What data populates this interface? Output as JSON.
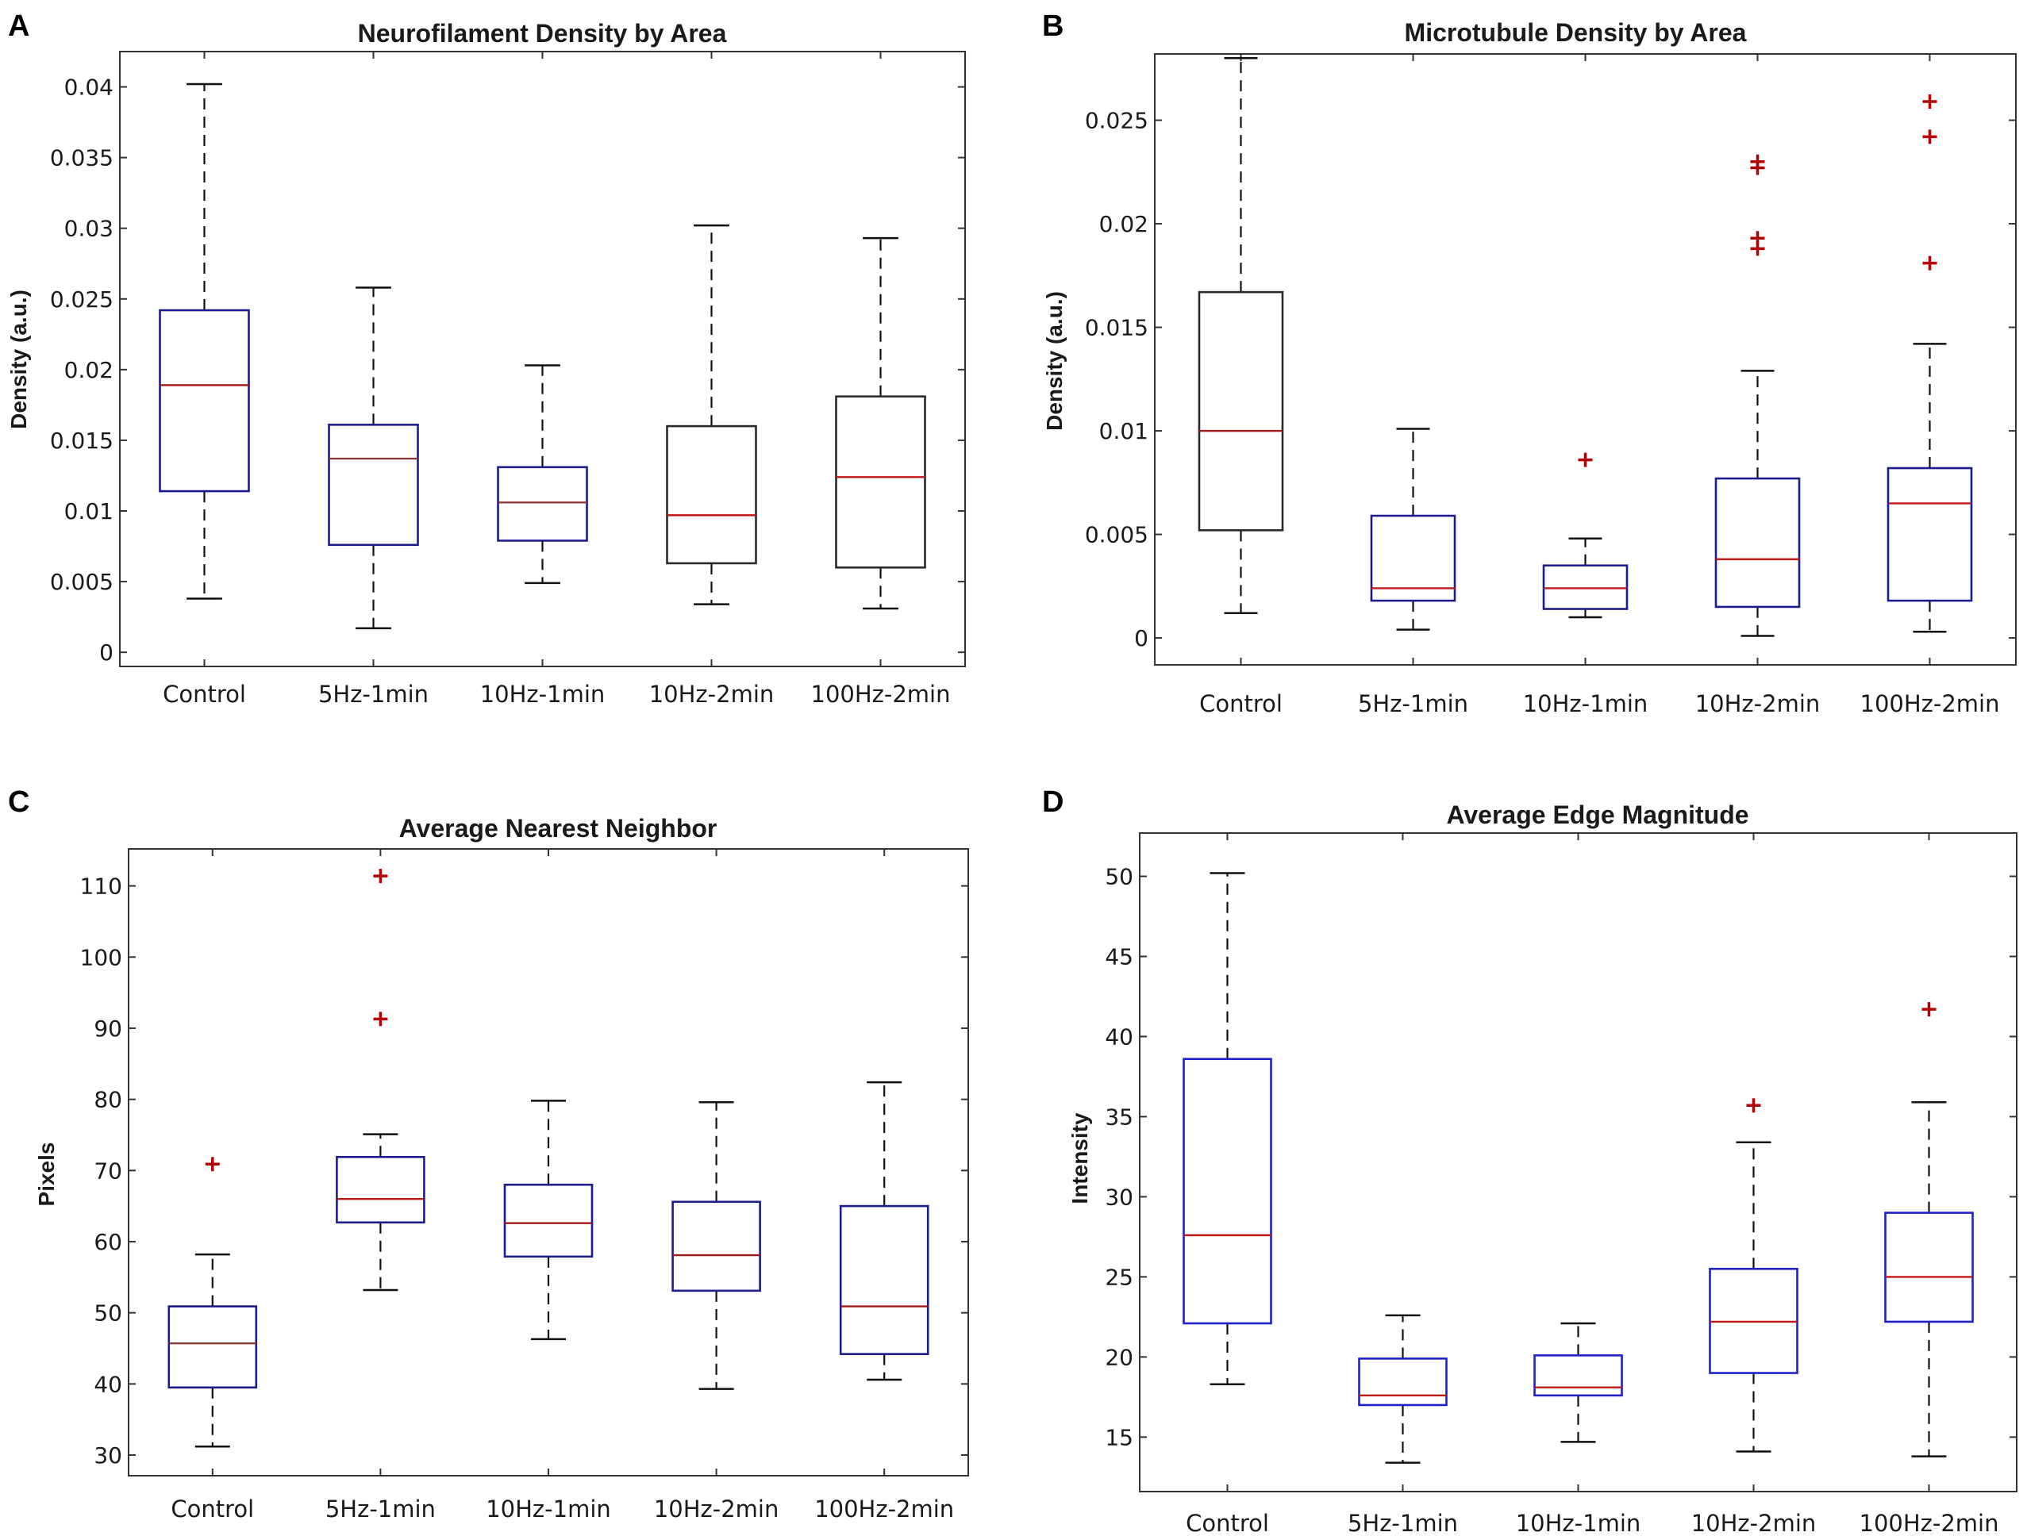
{
  "chart_data": [
    {
      "id": "A",
      "panel_label": "A",
      "type": "box",
      "title": "Neurofilament Density by Area",
      "xlabel": "",
      "ylabel": "Density (a.u.)",
      "ylim": [
        -0.001,
        0.0425
      ],
      "yticks": [
        0,
        0.005,
        0.01,
        0.015,
        0.02,
        0.025,
        0.03,
        0.035,
        0.04
      ],
      "ytick_labels": [
        "0",
        "0.005",
        "0.01",
        "0.015",
        "0.02",
        "0.025",
        "0.03",
        "0.035",
        "0.04"
      ],
      "categories": [
        "Control",
        "5Hz-1min",
        "10Hz-1min",
        "10Hz-2min",
        "100Hz-2min"
      ],
      "boxes": [
        {
          "whisker_low": 0.0038,
          "q1": 0.0114,
          "median": 0.0189,
          "q3": 0.0242,
          "whisker_high": 0.0402,
          "outliers": [],
          "box_color": "#1c1c8c",
          "median_color": "#a01818"
        },
        {
          "whisker_low": 0.0017,
          "q1": 0.0076,
          "median": 0.0137,
          "q3": 0.0161,
          "whisker_high": 0.0258,
          "outliers": [],
          "box_color": "#1c1c8c",
          "median_color": "#8a3a3a"
        },
        {
          "whisker_low": 0.0049,
          "q1": 0.0079,
          "median": 0.0106,
          "q3": 0.0131,
          "whisker_high": 0.0203,
          "outliers": [],
          "box_color": "#1c1c8c",
          "median_color": "#8a3a3a"
        },
        {
          "whisker_low": 0.0034,
          "q1": 0.0063,
          "median": 0.0097,
          "q3": 0.016,
          "whisker_high": 0.0302,
          "outliers": [],
          "box_color": "#2a2a2a",
          "median_color": "#c01818"
        },
        {
          "whisker_low": 0.0031,
          "q1": 0.006,
          "median": 0.0124,
          "q3": 0.0181,
          "whisker_high": 0.0293,
          "outliers": [],
          "box_color": "#2a2a2a",
          "median_color": "#c01818"
        }
      ]
    },
    {
      "id": "B",
      "panel_label": "B",
      "type": "box",
      "title": "Microtubule Density by Area",
      "xlabel": "",
      "ylabel": "Density (a.u.)",
      "ylim": [
        -0.0013,
        0.0282
      ],
      "yticks": [
        0,
        0.005,
        0.01,
        0.015,
        0.02,
        0.025
      ],
      "ytick_labels": [
        "0",
        "0.005",
        "0.01",
        "0.015",
        "0.02",
        "0.025"
      ],
      "categories": [
        "Control",
        "5Hz-1min",
        "10Hz-1min",
        "10Hz-2min",
        "100Hz-2min"
      ],
      "boxes": [
        {
          "whisker_low": 0.0012,
          "q1": 0.0052,
          "median": 0.01,
          "q3": 0.0167,
          "whisker_high": 0.028,
          "outliers": [],
          "box_color": "#2a2a2a",
          "median_color": "#a01818"
        },
        {
          "whisker_low": 0.0004,
          "q1": 0.0018,
          "median": 0.0024,
          "q3": 0.0059,
          "whisker_high": 0.0101,
          "outliers": [],
          "box_color": "#1c1c8c",
          "median_color": "#c01818"
        },
        {
          "whisker_low": 0.001,
          "q1": 0.0014,
          "median": 0.0024,
          "q3": 0.0035,
          "whisker_high": 0.0048,
          "outliers": [
            0.0086
          ],
          "box_color": "#1c1c8c",
          "median_color": "#c01818"
        },
        {
          "whisker_low": 0.0001,
          "q1": 0.0015,
          "median": 0.0038,
          "q3": 0.0077,
          "whisker_high": 0.0129,
          "outliers": [
            0.0188,
            0.0193,
            0.0227,
            0.023
          ],
          "box_color": "#1c1c8c",
          "median_color": "#c01818"
        },
        {
          "whisker_low": 0.0003,
          "q1": 0.0018,
          "median": 0.0065,
          "q3": 0.0082,
          "whisker_high": 0.0142,
          "outliers": [
            0.0181,
            0.0242,
            0.0259
          ],
          "box_color": "#1c1c8c",
          "median_color": "#c01818"
        }
      ]
    },
    {
      "id": "C",
      "panel_label": "C",
      "type": "box",
      "title": "Average Nearest Neighbor",
      "xlabel": "",
      "ylabel": "Pixels",
      "ylim": [
        27.1,
        115.2
      ],
      "yticks": [
        30,
        40,
        50,
        60,
        70,
        80,
        90,
        100,
        110
      ],
      "ytick_labels": [
        "30",
        "40",
        "50",
        "60",
        "70",
        "80",
        "90",
        "100",
        "110"
      ],
      "categories": [
        "Control",
        "5Hz-1min",
        "10Hz-1min",
        "10Hz-2min",
        "100Hz-2min"
      ],
      "boxes": [
        {
          "whisker_low": 31.2,
          "q1": 39.5,
          "median": 45.7,
          "q3": 50.9,
          "whisker_high": 58.2,
          "outliers": [
            70.9
          ],
          "box_color": "#1c1c8c",
          "median_color": "#8a3a3a"
        },
        {
          "whisker_low": 53.2,
          "q1": 62.7,
          "median": 66.0,
          "q3": 71.9,
          "whisker_high": 75.1,
          "outliers": [
            91.3,
            111.4
          ],
          "box_color": "#1c1c8c",
          "median_color": "#c01818"
        },
        {
          "whisker_low": 46.3,
          "q1": 57.9,
          "median": 62.6,
          "q3": 68.0,
          "whisker_high": 79.8,
          "outliers": [],
          "box_color": "#1c1c8c",
          "median_color": "#a01818"
        },
        {
          "whisker_low": 39.3,
          "q1": 53.1,
          "median": 58.1,
          "q3": 65.6,
          "whisker_high": 79.6,
          "outliers": [],
          "box_color": "#1c1c8c",
          "median_color": "#a01818"
        },
        {
          "whisker_low": 40.6,
          "q1": 44.2,
          "median": 50.9,
          "q3": 65.0,
          "whisker_high": 82.4,
          "outliers": [],
          "box_color": "#1c1c8c",
          "median_color": "#a01818"
        }
      ]
    },
    {
      "id": "D",
      "panel_label": "D",
      "type": "box",
      "title": "Average Edge Magnitude",
      "xlabel": "",
      "ylabel": "Intensity",
      "ylim": [
        11.6,
        52.7
      ],
      "yticks": [
        15,
        20,
        25,
        30,
        35,
        40,
        45,
        50
      ],
      "ytick_labels": [
        "15",
        "20",
        "25",
        "30",
        "35",
        "40",
        "45",
        "50"
      ],
      "categories": [
        "Control",
        "5Hz-1min",
        "10Hz-1min",
        "10Hz-2min",
        "100Hz-2min"
      ],
      "boxes": [
        {
          "whisker_low": 18.3,
          "q1": 22.1,
          "median": 27.6,
          "q3": 38.6,
          "whisker_high": 50.2,
          "outliers": [],
          "box_color": "#2020c8",
          "median_color": "#c01818"
        },
        {
          "whisker_low": 13.4,
          "q1": 17.0,
          "median": 17.6,
          "q3": 19.9,
          "whisker_high": 22.6,
          "outliers": [],
          "box_color": "#2020c8",
          "median_color": "#c01818"
        },
        {
          "whisker_low": 14.7,
          "q1": 17.6,
          "median": 18.1,
          "q3": 20.1,
          "whisker_high": 22.1,
          "outliers": [],
          "box_color": "#2020c8",
          "median_color": "#c01818"
        },
        {
          "whisker_low": 14.1,
          "q1": 19.0,
          "median": 22.2,
          "q3": 25.5,
          "whisker_high": 33.4,
          "outliers": [
            35.7
          ],
          "box_color": "#2020c8",
          "median_color": "#c01818"
        },
        {
          "whisker_low": 13.8,
          "q1": 22.2,
          "median": 25.0,
          "q3": 29.0,
          "whisker_high": 35.9,
          "outliers": [
            41.7
          ],
          "box_color": "#2020c8",
          "median_color": "#c01818"
        }
      ]
    }
  ]
}
